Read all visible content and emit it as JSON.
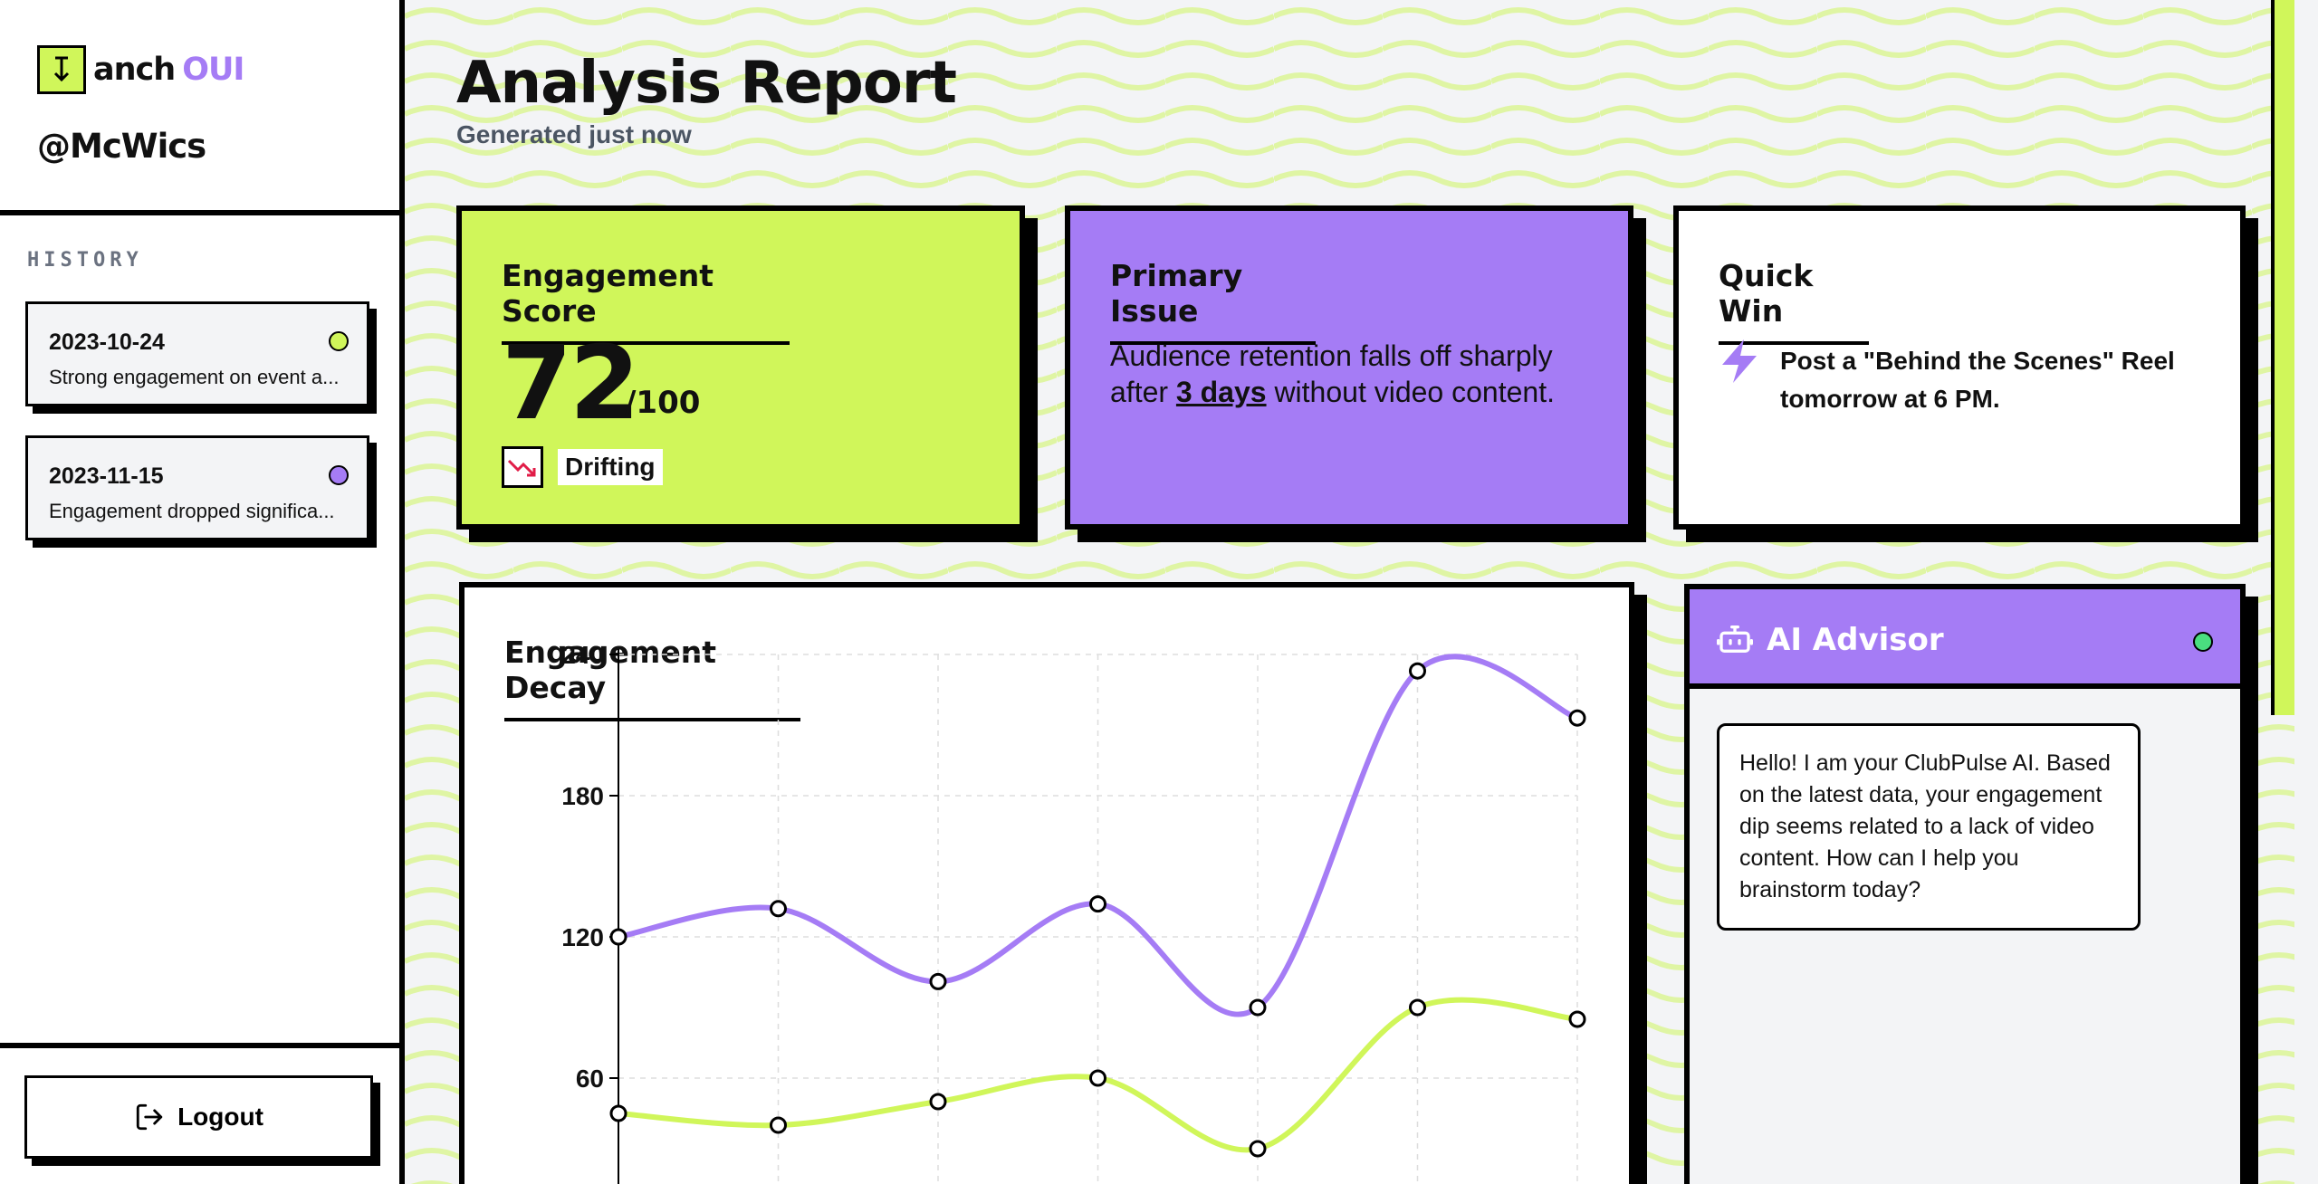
{
  "brand": {
    "icon": "anchor-down-icon",
    "name": "anch",
    "accent": "OUI",
    "accent_color": "#a57cf5"
  },
  "user": {
    "handle": "@McWics"
  },
  "history": {
    "label": "HISTORY",
    "items": [
      {
        "date": "2023-10-24",
        "summary": "Strong engagement on event a...",
        "dot_color": "#d0f65a"
      },
      {
        "date": "2023-11-15",
        "summary": "Engagement dropped significa...",
        "dot_color": "#a57cf5"
      }
    ]
  },
  "logout": {
    "label": "Logout",
    "icon": "logout-icon"
  },
  "header": {
    "title": "Analysis Report",
    "subtitle": "Generated just now"
  },
  "engagement": {
    "title": "Engagement Score",
    "score": "72",
    "max": "/100",
    "trend_label": "Drifting",
    "trend_icon": "trending-down-icon"
  },
  "issue": {
    "title": "Primary Issue",
    "text_before": "Audience retention falls off sharply after ",
    "highlight": "3 days",
    "text_after": " without video content."
  },
  "quick_win": {
    "title": "Quick Win",
    "icon": "lightning-icon",
    "text": "Post a \"Behind the Scenes\" Reel tomorrow at 6 PM."
  },
  "chart": {
    "title": "Engagement Decay"
  },
  "advisor": {
    "title": "AI Advisor",
    "icon": "robot-icon",
    "status_color": "#4ade80",
    "message": "Hello! I am your ClubPulse AI. Based on the latest data, your engagement dip seems related to a lack of video content. How can I help you brainstorm today?"
  },
  "colors": {
    "lime": "#d0f65a",
    "purple": "#a57cf5",
    "ink": "#111111"
  },
  "chart_data": {
    "type": "line",
    "title": "Engagement Decay",
    "x": [
      1,
      2,
      3,
      4,
      5,
      6,
      7
    ],
    "ylim": [
      0,
      240
    ],
    "yticks": [
      60,
      120,
      180,
      240
    ],
    "grid": true,
    "series": [
      {
        "values": [
          120,
          132,
          101,
          134,
          90,
          233,
          213
        ],
        "color": "#a57cf5"
      },
      {
        "values": [
          45,
          40,
          50,
          60,
          30,
          90,
          85
        ],
        "color": "#d0f65a"
      }
    ]
  }
}
